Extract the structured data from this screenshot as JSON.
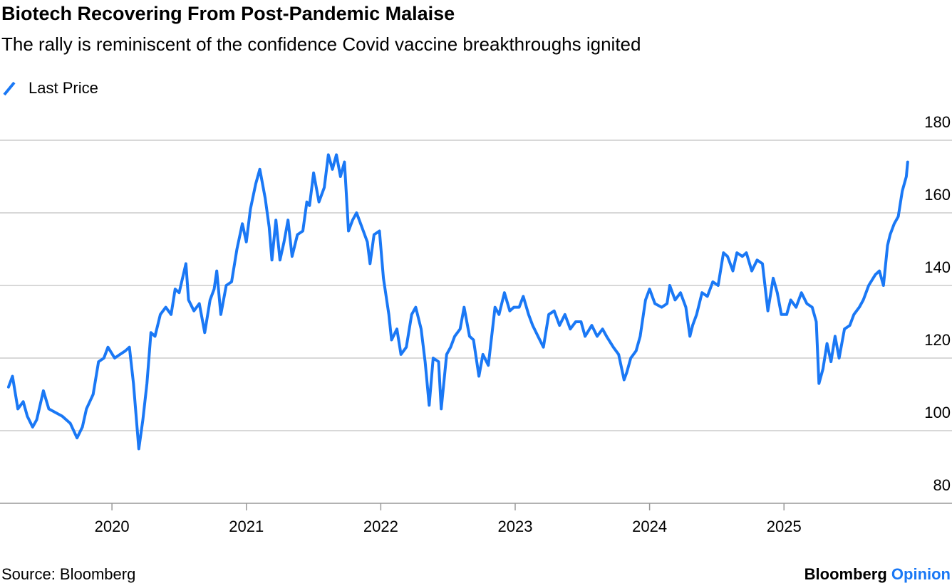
{
  "chart_data": {
    "type": "line",
    "title": "Biotech Recovering From Post-Pandemic Malaise",
    "subtitle": "The rally is reminiscent of the confidence Covid vaccine breakthroughs ignited",
    "source": "Source: Bloomberg",
    "credit": {
      "brand": "Bloomberg",
      "section": "Opinion"
    },
    "x": [
      2019.23,
      2019.26,
      2019.3,
      2019.34,
      2019.37,
      2019.41,
      2019.44,
      2019.49,
      2019.53,
      2019.58,
      2019.63,
      2019.69,
      2019.74,
      2019.78,
      2019.81,
      2019.86,
      2019.9,
      2019.94,
      2019.97,
      2020.02,
      2020.06,
      2020.1,
      2020.13,
      2020.16,
      2020.2,
      2020.23,
      2020.26,
      2020.29,
      2020.32,
      2020.36,
      2020.4,
      2020.44,
      2020.47,
      2020.5,
      2020.55,
      2020.57,
      2020.61,
      2020.65,
      2020.69,
      2020.73,
      2020.76,
      2020.78,
      2020.81,
      2020.85,
      2020.89,
      2020.93,
      2020.97,
      2021.0,
      2021.03,
      2021.07,
      2021.1,
      2021.14,
      2021.17,
      2021.19,
      2021.22,
      2021.25,
      2021.28,
      2021.31,
      2021.34,
      2021.38,
      2021.42,
      2021.45,
      2021.47,
      2021.5,
      2021.54,
      2021.58,
      2021.61,
      2021.64,
      2021.67,
      2021.7,
      2021.73,
      2021.76,
      2021.79,
      2021.82,
      2021.86,
      2021.9,
      2021.92,
      2021.95,
      2021.99,
      2022.02,
      2022.06,
      2022.08,
      2022.12,
      2022.15,
      2022.19,
      2022.23,
      2022.26,
      2022.3,
      2022.33,
      2022.36,
      2022.39,
      2022.43,
      2022.45,
      2022.49,
      2022.52,
      2022.55,
      2022.59,
      2022.62,
      2022.66,
      2022.69,
      2022.73,
      2022.76,
      2022.8,
      2022.85,
      2022.88,
      2022.92,
      2022.96,
      2022.99,
      2023.03,
      2023.06,
      2023.1,
      2023.13,
      2023.17,
      2023.21,
      2023.25,
      2023.29,
      2023.33,
      2023.37,
      2023.41,
      2023.45,
      2023.49,
      2023.52,
      2023.57,
      2023.61,
      2023.65,
      2023.68,
      2023.73,
      2023.77,
      2023.81,
      2023.83,
      2023.86,
      2023.9,
      2023.93,
      2023.97,
      2024.0,
      2024.04,
      2024.09,
      2024.13,
      2024.15,
      2024.19,
      2024.23,
      2024.27,
      2024.3,
      2024.32,
      2024.35,
      2024.39,
      2024.43,
      2024.47,
      2024.51,
      2024.55,
      2024.58,
      2024.62,
      2024.65,
      2024.69,
      2024.72,
      2024.76,
      2024.8,
      2024.84,
      2024.88,
      2024.92,
      2024.95,
      2024.98,
      2025.02,
      2025.05,
      2025.09,
      2025.13,
      2025.17,
      2025.21,
      2025.24,
      2025.26,
      2025.29,
      2025.32,
      2025.35,
      2025.38,
      2025.41,
      2025.45,
      2025.49,
      2025.52,
      2025.56,
      2025.59,
      2025.63,
      2025.68,
      2025.71,
      2025.74,
      2025.77,
      2025.79,
      2025.82,
      2025.85,
      2025.88,
      2025.91,
      2025.92
    ],
    "series": [
      {
        "name": "Last Price",
        "color": "#1a78f5",
        "values": [
          112,
          115,
          106,
          108,
          104,
          101,
          103,
          111,
          106,
          105,
          104,
          102,
          98,
          101,
          106,
          110,
          119,
          120,
          123,
          120,
          121,
          122,
          123,
          113,
          95,
          103,
          113,
          127,
          126,
          132,
          134,
          132,
          139,
          138,
          146,
          136,
          133,
          135,
          127,
          136,
          139,
          144,
          132,
          140,
          141,
          150,
          157,
          152,
          161,
          168,
          172,
          164,
          156,
          147,
          158,
          147,
          152,
          158,
          148,
          154,
          155,
          163,
          162,
          171,
          163,
          167,
          176,
          172,
          176,
          170,
          174,
          155,
          158,
          160,
          156,
          152,
          146,
          154,
          155,
          142,
          132,
          125,
          128,
          121,
          123,
          132,
          134,
          128,
          119,
          107,
          120,
          119,
          106,
          121,
          123,
          126,
          128,
          134,
          126,
          125,
          115,
          121,
          118,
          134,
          132,
          138,
          133,
          134,
          134,
          137,
          132,
          129,
          126,
          123,
          132,
          133,
          129,
          132,
          128,
          130,
          130,
          126,
          129,
          126,
          128,
          126,
          123,
          121,
          114,
          116,
          120,
          122,
          126,
          136,
          139,
          135,
          134,
          135,
          140,
          136,
          138,
          134,
          126,
          129,
          132,
          138,
          137,
          141,
          140,
          149,
          148,
          144,
          149,
          148,
          149,
          144,
          147,
          146,
          133,
          142,
          138,
          132,
          132,
          136,
          134,
          138,
          135,
          134,
          130,
          113,
          117,
          124,
          119,
          126,
          120,
          128,
          129,
          132,
          134,
          136,
          140,
          143,
          144,
          140,
          151,
          154,
          157,
          159,
          166,
          170,
          174
        ]
      }
    ],
    "xlim": [
      2019.22,
      2026.25
    ],
    "xticks": [
      2020,
      2021,
      2022,
      2023,
      2024,
      2025
    ],
    "ylim": [
      80,
      180
    ],
    "yticks": [
      80,
      100,
      120,
      140,
      160,
      180
    ],
    "grid": true
  }
}
